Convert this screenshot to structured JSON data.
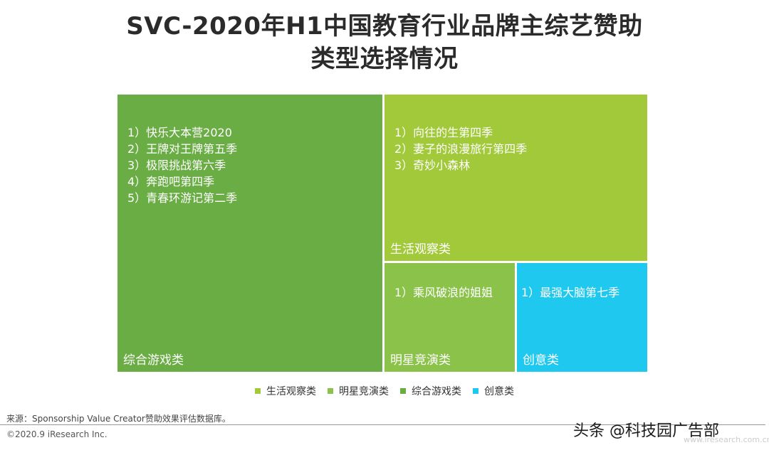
{
  "title_line1": "SVC-2020年H1中国教育行业品牌主综艺赞助",
  "title_line2": "类型选择情况",
  "chart_data": {
    "type": "treemap",
    "title": "SVC-2020年H1中国教育行业品牌主综艺赞助类型选择情况",
    "categories": [
      {
        "name": "综合游戏类",
        "color": "#6aad44",
        "count": 5,
        "items": [
          "1）快乐大本营2020",
          "2）王牌对王牌第五季",
          "3）极限挑战第六季",
          "4）奔跑吧第四季",
          "5）青春环游记第二季"
        ]
      },
      {
        "name": "生活观察类",
        "color": "#a1c93a",
        "count": 3,
        "items": [
          "1）向往的生第四季",
          "2）妻子的浪漫旅行第四季",
          "3）奇妙小森林"
        ]
      },
      {
        "name": "明星竞演类",
        "color": "#8bc34a",
        "count": 1,
        "items": [
          "1）乘风破浪的姐姐"
        ]
      },
      {
        "name": "创意类",
        "color": "#1ec8ef",
        "count": 1,
        "items": [
          "1）最强大脑第七季"
        ]
      }
    ],
    "legend": [
      "生活观察类",
      "明星竞演类",
      "综合游戏类",
      "创意类"
    ],
    "legend_position": "bottom"
  },
  "source": "来源：Sponsorship Value Creator赞助效果评估数据库。",
  "copyright": "©2020.9 iResearch Inc.",
  "watermark": "头条 @科技园广告部",
  "url": "www.iresearch.com.cn"
}
